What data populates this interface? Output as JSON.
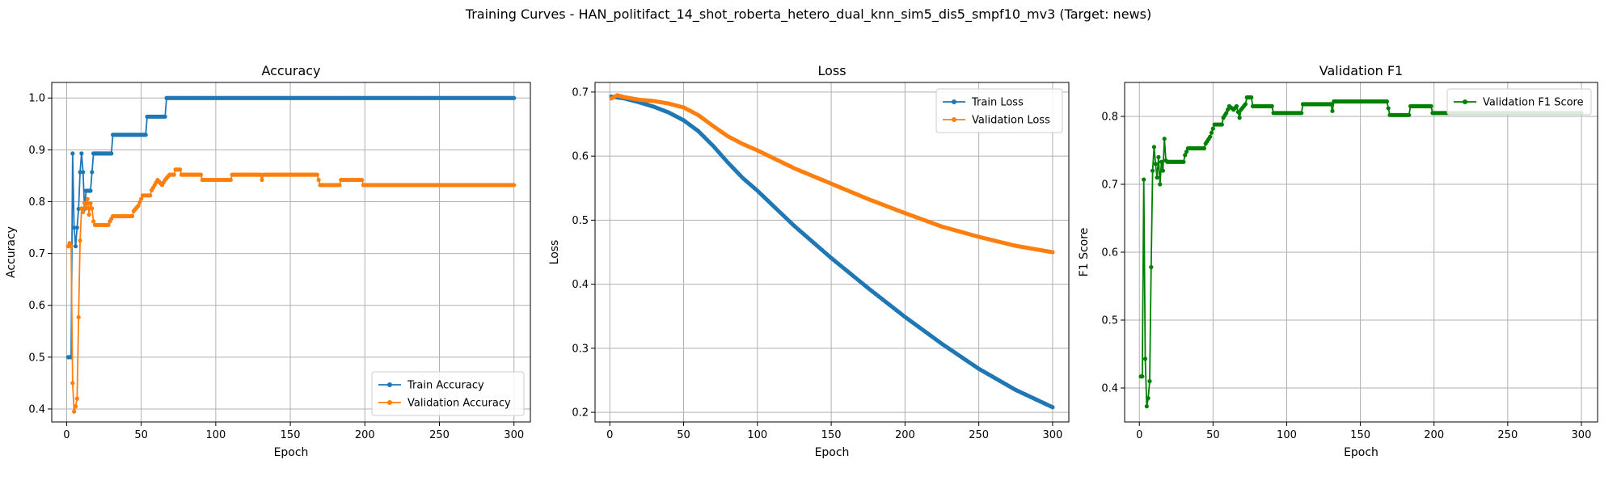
{
  "suptitle": "Training Curves - HAN_politifact_14_shot_roberta_hetero_dual_knn_sim5_dis5_smpf10_mv3 (Target: news)",
  "colors": {
    "train": "#1f77b4",
    "val": "#ff7f0e",
    "f1": "#008000",
    "grid": "#b0b0b0"
  },
  "chart_data": [
    {
      "type": "line",
      "title": "Accuracy",
      "xlabel": "Epoch",
      "ylabel": "Accuracy",
      "xlim": [
        -10,
        311
      ],
      "ylim": [
        0.375,
        1.03
      ],
      "xticks": [
        0,
        50,
        100,
        150,
        200,
        250,
        300
      ],
      "yticks": [
        0.4,
        0.5,
        0.6,
        0.7,
        0.8,
        0.9,
        1.0
      ],
      "ytick_labels": [
        "0.4",
        "0.5",
        "0.6",
        "0.7",
        "0.8",
        "0.9",
        "1.0"
      ],
      "grid": true,
      "legend": "lower-right",
      "series": [
        {
          "name": "Train Accuracy",
          "color_key": "train",
          "points": [
            [
              1,
              0.5
            ],
            [
              2,
              0.5
            ],
            [
              3,
              0.5
            ],
            [
              4,
              0.893
            ],
            [
              5,
              0.75
            ],
            [
              6,
              0.714
            ],
            [
              7,
              0.75
            ],
            [
              8,
              0.786
            ],
            [
              9,
              0.857
            ],
            [
              10,
              0.893
            ],
            [
              11,
              0.857
            ],
            [
              12,
              0.786
            ],
            [
              13,
              0.821
            ],
            [
              14,
              0.821
            ],
            [
              15,
              0.821
            ],
            [
              16,
              0.821
            ],
            [
              17,
              0.857
            ],
            [
              18,
              0.893
            ],
            [
              30,
              0.893
            ],
            [
              31,
              0.929
            ],
            [
              53,
              0.929
            ],
            [
              54,
              0.964
            ],
            [
              66,
              0.964
            ],
            [
              67,
              1.0
            ],
            [
              300,
              1.0
            ]
          ]
        },
        {
          "name": "Validation Accuracy",
          "color_key": "val",
          "points": [
            [
              1,
              0.714
            ],
            [
              2,
              0.72
            ],
            [
              3,
              0.714
            ],
            [
              4,
              0.45
            ],
            [
              5,
              0.395
            ],
            [
              6,
              0.405
            ],
            [
              7,
              0.42
            ],
            [
              8,
              0.577
            ],
            [
              9,
              0.725
            ],
            [
              10,
              0.787
            ],
            [
              11,
              0.78
            ],
            [
              12,
              0.797
            ],
            [
              13,
              0.787
            ],
            [
              14,
              0.805
            ],
            [
              15,
              0.775
            ],
            [
              16,
              0.797
            ],
            [
              17,
              0.787
            ],
            [
              18,
              0.762
            ],
            [
              19,
              0.755
            ],
            [
              28,
              0.755
            ],
            [
              29,
              0.762
            ],
            [
              31,
              0.772
            ],
            [
              44,
              0.772
            ],
            [
              45,
              0.782
            ],
            [
              48,
              0.792
            ],
            [
              51,
              0.812
            ],
            [
              56,
              0.812
            ],
            [
              57,
              0.822
            ],
            [
              59,
              0.832
            ],
            [
              61,
              0.842
            ],
            [
              64,
              0.832
            ],
            [
              66,
              0.842
            ],
            [
              69,
              0.852
            ],
            [
              72,
              0.852
            ],
            [
              73,
              0.862
            ],
            [
              76,
              0.862
            ],
            [
              77,
              0.852
            ],
            [
              90,
              0.852
            ],
            [
              91,
              0.842
            ],
            [
              110,
              0.842
            ],
            [
              111,
              0.852
            ],
            [
              130,
              0.852
            ],
            [
              131,
              0.842
            ],
            [
              132,
              0.852
            ],
            [
              168,
              0.852
            ],
            [
              169,
              0.842
            ],
            [
              170,
              0.832
            ],
            [
              183,
              0.832
            ],
            [
              184,
              0.842
            ],
            [
              198,
              0.842
            ],
            [
              199,
              0.832
            ],
            [
              300,
              0.832
            ]
          ]
        }
      ]
    },
    {
      "type": "line",
      "title": "Loss",
      "xlabel": "Epoch",
      "ylabel": "Loss",
      "xlim": [
        -10,
        311
      ],
      "ylim": [
        0.185,
        0.715
      ],
      "xticks": [
        0,
        50,
        100,
        150,
        200,
        250,
        300
      ],
      "yticks": [
        0.2,
        0.3,
        0.4,
        0.5,
        0.6,
        0.7
      ],
      "ytick_labels": [
        "0.2",
        "0.3",
        "0.4",
        "0.5",
        "0.6",
        "0.7"
      ],
      "grid": true,
      "legend": "upper-right",
      "series": [
        {
          "name": "Train Loss",
          "color_key": "train",
          "points": [
            [
              1,
              0.693
            ],
            [
              10,
              0.69
            ],
            [
              20,
              0.684
            ],
            [
              30,
              0.677
            ],
            [
              40,
              0.668
            ],
            [
              50,
              0.656
            ],
            [
              60,
              0.639
            ],
            [
              70,
              0.616
            ],
            [
              80,
              0.59
            ],
            [
              90,
              0.566
            ],
            [
              100,
              0.546
            ],
            [
              125,
              0.491
            ],
            [
              150,
              0.441
            ],
            [
              175,
              0.394
            ],
            [
              200,
              0.349
            ],
            [
              225,
              0.307
            ],
            [
              250,
              0.268
            ],
            [
              275,
              0.235
            ],
            [
              300,
              0.208
            ]
          ]
        },
        {
          "name": "Validation Loss",
          "color_key": "val",
          "points": [
            [
              1,
              0.69
            ],
            [
              5,
              0.695
            ],
            [
              10,
              0.692
            ],
            [
              20,
              0.688
            ],
            [
              30,
              0.686
            ],
            [
              40,
              0.682
            ],
            [
              50,
              0.676
            ],
            [
              60,
              0.664
            ],
            [
              70,
              0.647
            ],
            [
              80,
              0.631
            ],
            [
              90,
              0.619
            ],
            [
              100,
              0.609
            ],
            [
              125,
              0.581
            ],
            [
              150,
              0.557
            ],
            [
              175,
              0.533
            ],
            [
              200,
              0.511
            ],
            [
              225,
              0.49
            ],
            [
              250,
              0.474
            ],
            [
              275,
              0.46
            ],
            [
              300,
              0.45
            ]
          ]
        }
      ]
    },
    {
      "type": "line",
      "title": "Validation F1",
      "xlabel": "Epoch",
      "ylabel": "F1 Score",
      "xlim": [
        -10,
        311
      ],
      "ylim": [
        0.35,
        0.85
      ],
      "xticks": [
        0,
        50,
        100,
        150,
        200,
        250,
        300
      ],
      "yticks": [
        0.4,
        0.5,
        0.6,
        0.7,
        0.8
      ],
      "ytick_labels": [
        "0.4",
        "0.5",
        "0.6",
        "0.7",
        "0.8"
      ],
      "grid": true,
      "legend": "upper-right",
      "series": [
        {
          "name": "Validation F1 Score",
          "color_key": "f1",
          "points": [
            [
              1,
              0.417
            ],
            [
              2,
              0.417
            ],
            [
              3,
              0.707
            ],
            [
              4,
              0.443
            ],
            [
              5,
              0.373
            ],
            [
              6,
              0.385
            ],
            [
              7,
              0.41
            ],
            [
              8,
              0.578
            ],
            [
              9,
              0.72
            ],
            [
              10,
              0.755
            ],
            [
              11,
              0.73
            ],
            [
              12,
              0.71
            ],
            [
              13,
              0.74
            ],
            [
              14,
              0.7
            ],
            [
              15,
              0.733
            ],
            [
              16,
              0.72
            ],
            [
              17,
              0.767
            ],
            [
              18,
              0.735
            ],
            [
              19,
              0.733
            ],
            [
              30,
              0.733
            ],
            [
              31,
              0.743
            ],
            [
              33,
              0.753
            ],
            [
              44,
              0.753
            ],
            [
              45,
              0.76
            ],
            [
              48,
              0.77
            ],
            [
              51,
              0.788
            ],
            [
              56,
              0.788
            ],
            [
              57,
              0.798
            ],
            [
              59,
              0.805
            ],
            [
              61,
              0.815
            ],
            [
              64,
              0.81
            ],
            [
              66,
              0.815
            ],
            [
              68,
              0.798
            ],
            [
              69,
              0.81
            ],
            [
              72,
              0.818
            ],
            [
              73,
              0.828
            ],
            [
              76,
              0.828
            ],
            [
              77,
              0.815
            ],
            [
              90,
              0.815
            ],
            [
              91,
              0.805
            ],
            [
              110,
              0.805
            ],
            [
              111,
              0.818
            ],
            [
              130,
              0.818
            ],
            [
              131,
              0.808
            ],
            [
              132,
              0.822
            ],
            [
              168,
              0.822
            ],
            [
              169,
              0.812
            ],
            [
              170,
              0.802
            ],
            [
              183,
              0.802
            ],
            [
              184,
              0.815
            ],
            [
              198,
              0.815
            ],
            [
              199,
              0.805
            ],
            [
              300,
              0.805
            ]
          ]
        }
      ]
    }
  ]
}
